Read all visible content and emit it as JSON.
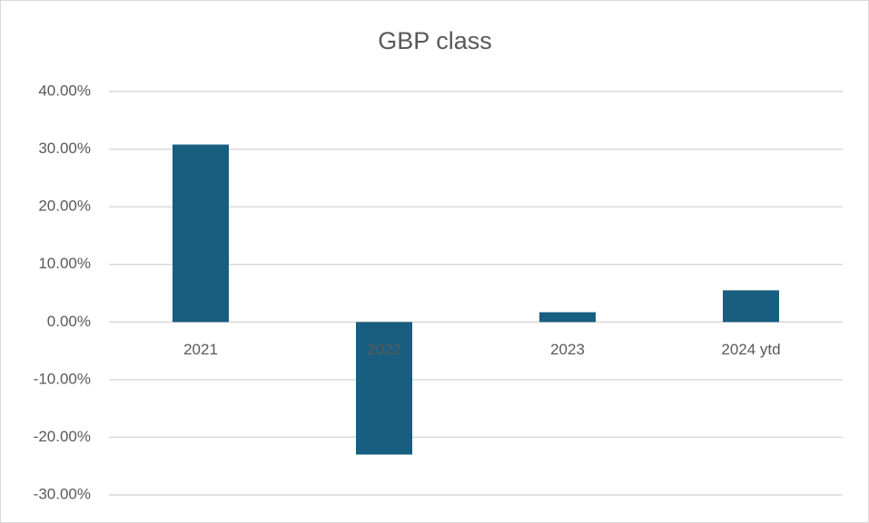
{
  "chart_data": {
    "type": "bar",
    "title": "GBP class",
    "categories": [
      "2021",
      "2022",
      "2023",
      "2024 ytd"
    ],
    "values": [
      30.8,
      -23.0,
      1.7,
      5.5
    ],
    "color": "#175e80",
    "ylim": [
      -30,
      40
    ],
    "yticks": [
      {
        "value": -30,
        "label": "-30.00%"
      },
      {
        "value": -20,
        "label": "-20.00%"
      },
      {
        "value": -10,
        "label": "-10.00%"
      },
      {
        "value": 0,
        "label": "0.00%"
      },
      {
        "value": 10,
        "label": "10.00%"
      },
      {
        "value": 20,
        "label": "20.00%"
      },
      {
        "value": 30,
        "label": "30.00%"
      },
      {
        "value": 40,
        "label": "40.00%"
      }
    ],
    "grid": true
  }
}
